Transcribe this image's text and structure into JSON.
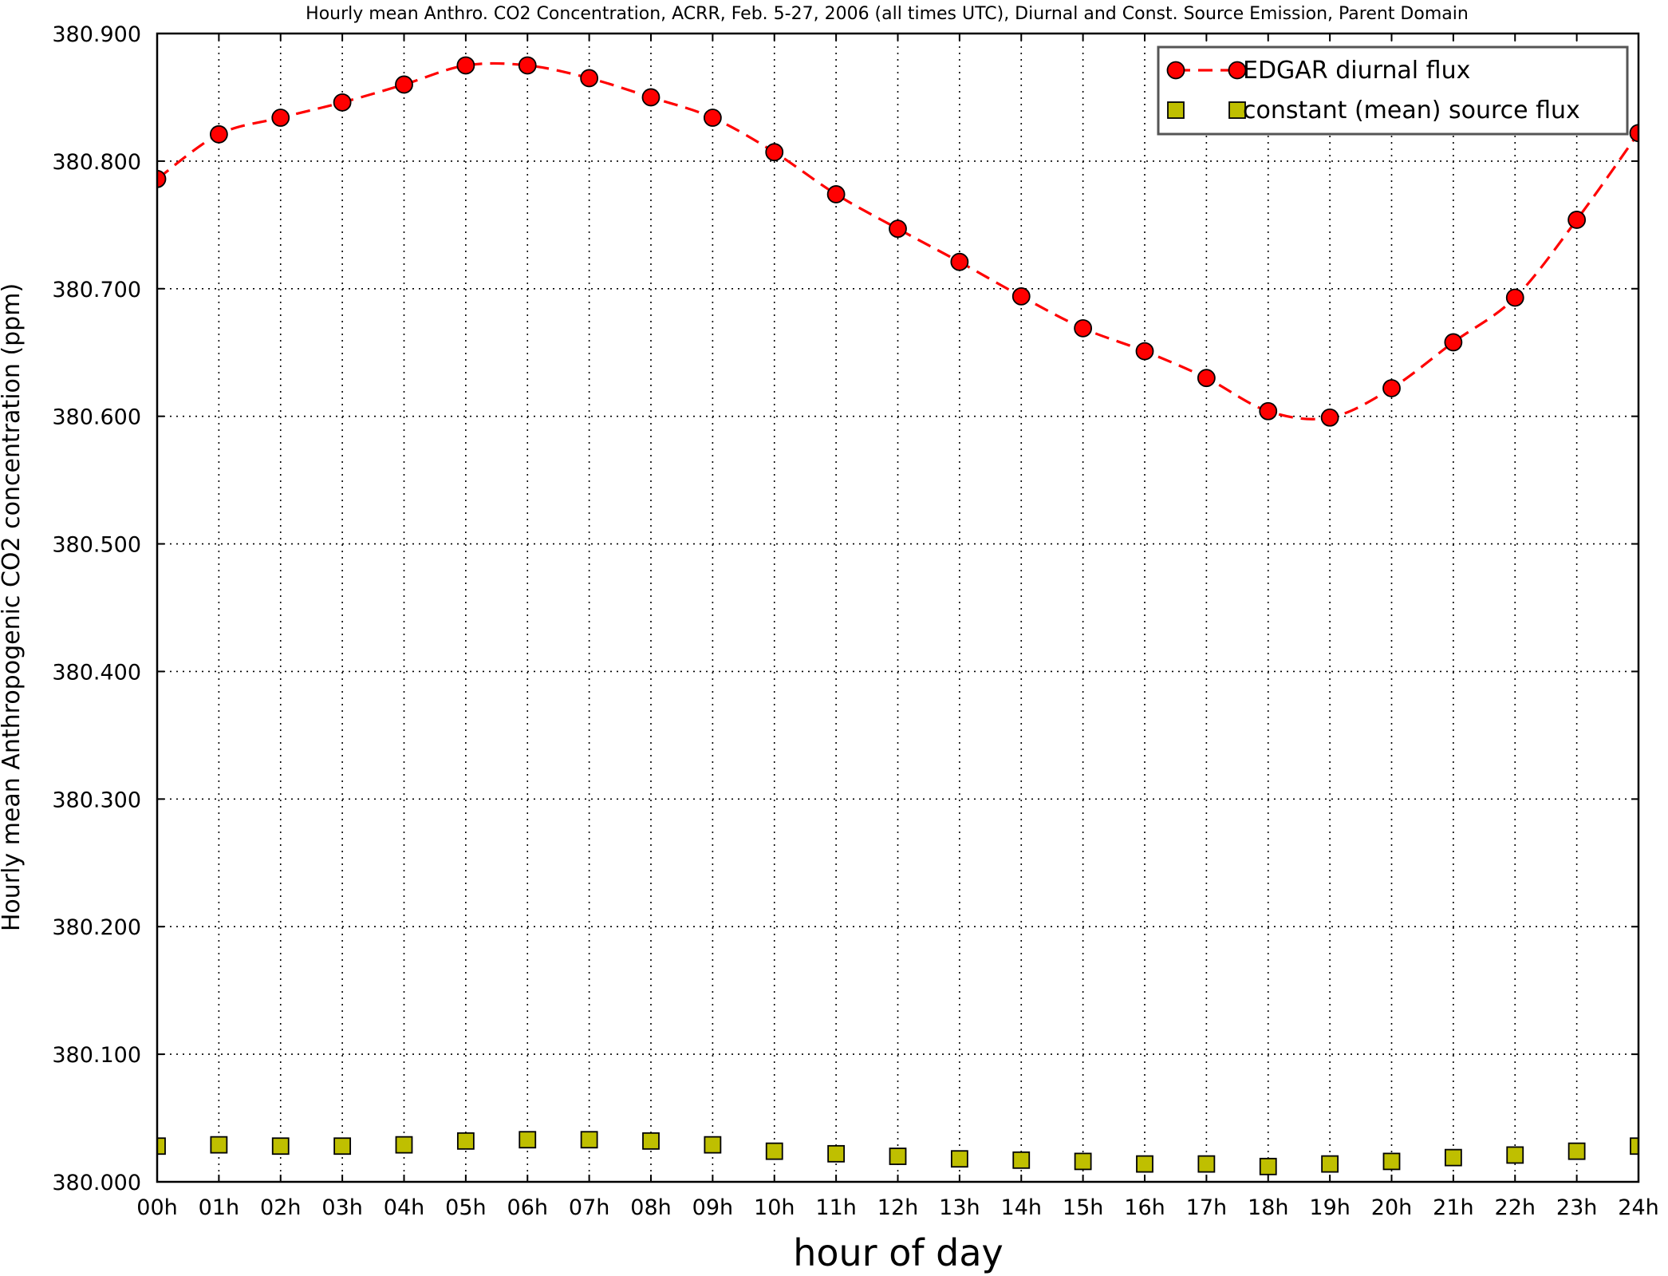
{
  "chart_data": {
    "type": "line",
    "title": "Hourly mean Anthro. CO2 Concentration, ACRR, Feb. 5-27, 2006 (all times UTC), Diurnal and Const. Source Emission, Parent Domain",
    "xlabel": "hour of day",
    "ylabel": "Hourly mean Anthropogenic CO2 concentration (ppm)",
    "ylim": [
      380.0,
      380.9
    ],
    "xlim": [
      0,
      24
    ],
    "grid": true,
    "legend_position": "top-right",
    "categories": [
      "00h",
      "01h",
      "02h",
      "03h",
      "04h",
      "05h",
      "06h",
      "07h",
      "08h",
      "09h",
      "10h",
      "11h",
      "12h",
      "13h",
      "14h",
      "15h",
      "16h",
      "17h",
      "18h",
      "19h",
      "20h",
      "21h",
      "22h",
      "23h",
      "24h"
    ],
    "y_ticks": [
      "380.000",
      "380.100",
      "380.200",
      "380.300",
      "380.400",
      "380.500",
      "380.600",
      "380.700",
      "380.800",
      "380.900"
    ],
    "series": [
      {
        "name": "EDGAR diurnal flux",
        "color": "#ff0000",
        "marker": "circle",
        "line": "dashed",
        "values": [
          380.786,
          380.821,
          380.834,
          380.846,
          380.86,
          380.875,
          380.875,
          380.865,
          380.85,
          380.834,
          380.807,
          380.774,
          380.747,
          380.721,
          380.694,
          380.669,
          380.651,
          380.63,
          380.604,
          380.599,
          380.622,
          380.658,
          380.693,
          380.754,
          380.822
        ]
      },
      {
        "name": "constant (mean) source flux",
        "color": "#bfbf00",
        "marker": "square",
        "line": "none",
        "values": [
          380.028,
          380.029,
          380.028,
          380.028,
          380.029,
          380.032,
          380.033,
          380.033,
          380.032,
          380.029,
          380.024,
          380.022,
          380.02,
          380.018,
          380.017,
          380.016,
          380.014,
          380.014,
          380.012,
          380.014,
          380.016,
          380.019,
          380.021,
          380.024,
          380.028
        ]
      }
    ]
  }
}
